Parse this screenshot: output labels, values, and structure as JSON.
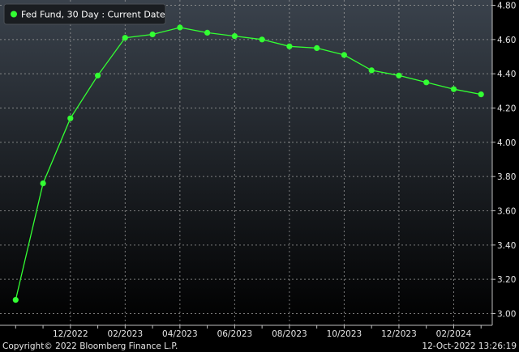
{
  "colors": {
    "background_top": "#3a424c",
    "background_bottom": "#000000",
    "series": "#33ff33",
    "grid": "#a0a0a0",
    "text": "#e6e6e6"
  },
  "legend": {
    "label": "Fed Fund, 30 Day : Current Date",
    "placement": "top-left"
  },
  "footer": {
    "copyright": "Copyright© 2022 Bloomberg Finance L.P.",
    "timestamp": "12-Oct-2022 13:26:19"
  },
  "chart_data": {
    "type": "line",
    "title": "",
    "xlabel": "",
    "ylabel": "",
    "grid": true,
    "y_axis_side": "right",
    "ylim": [
      2.95,
      4.82
    ],
    "y_ticks": [
      3.0,
      3.2,
      3.4,
      3.6,
      3.8,
      4.0,
      4.2,
      4.4,
      4.6,
      4.8
    ],
    "y_tick_labels": [
      "3.00",
      "3.20",
      "3.40",
      "3.60",
      "3.80",
      "4.00",
      "4.20",
      "4.40",
      "4.60",
      "4.80"
    ],
    "x_ticks": [
      "12/2022",
      "02/2023",
      "04/2023",
      "06/2023",
      "08/2023",
      "10/2023",
      "12/2023",
      "02/2024"
    ],
    "series": [
      {
        "name": "Fed Fund, 30 Day : Current Date",
        "x": [
          "10/2022",
          "11/2022",
          "12/2022",
          "01/2023",
          "02/2023",
          "03/2023",
          "04/2023",
          "05/2023",
          "06/2023",
          "07/2023",
          "08/2023",
          "09/2023",
          "10/2023",
          "11/2023",
          "12/2023",
          "01/2024",
          "02/2024",
          "03/2024"
        ],
        "values": [
          3.08,
          3.76,
          4.14,
          4.39,
          4.61,
          4.63,
          4.67,
          4.64,
          4.62,
          4.6,
          4.56,
          4.55,
          4.51,
          4.42,
          4.39,
          4.35,
          4.31,
          4.28
        ]
      }
    ]
  }
}
